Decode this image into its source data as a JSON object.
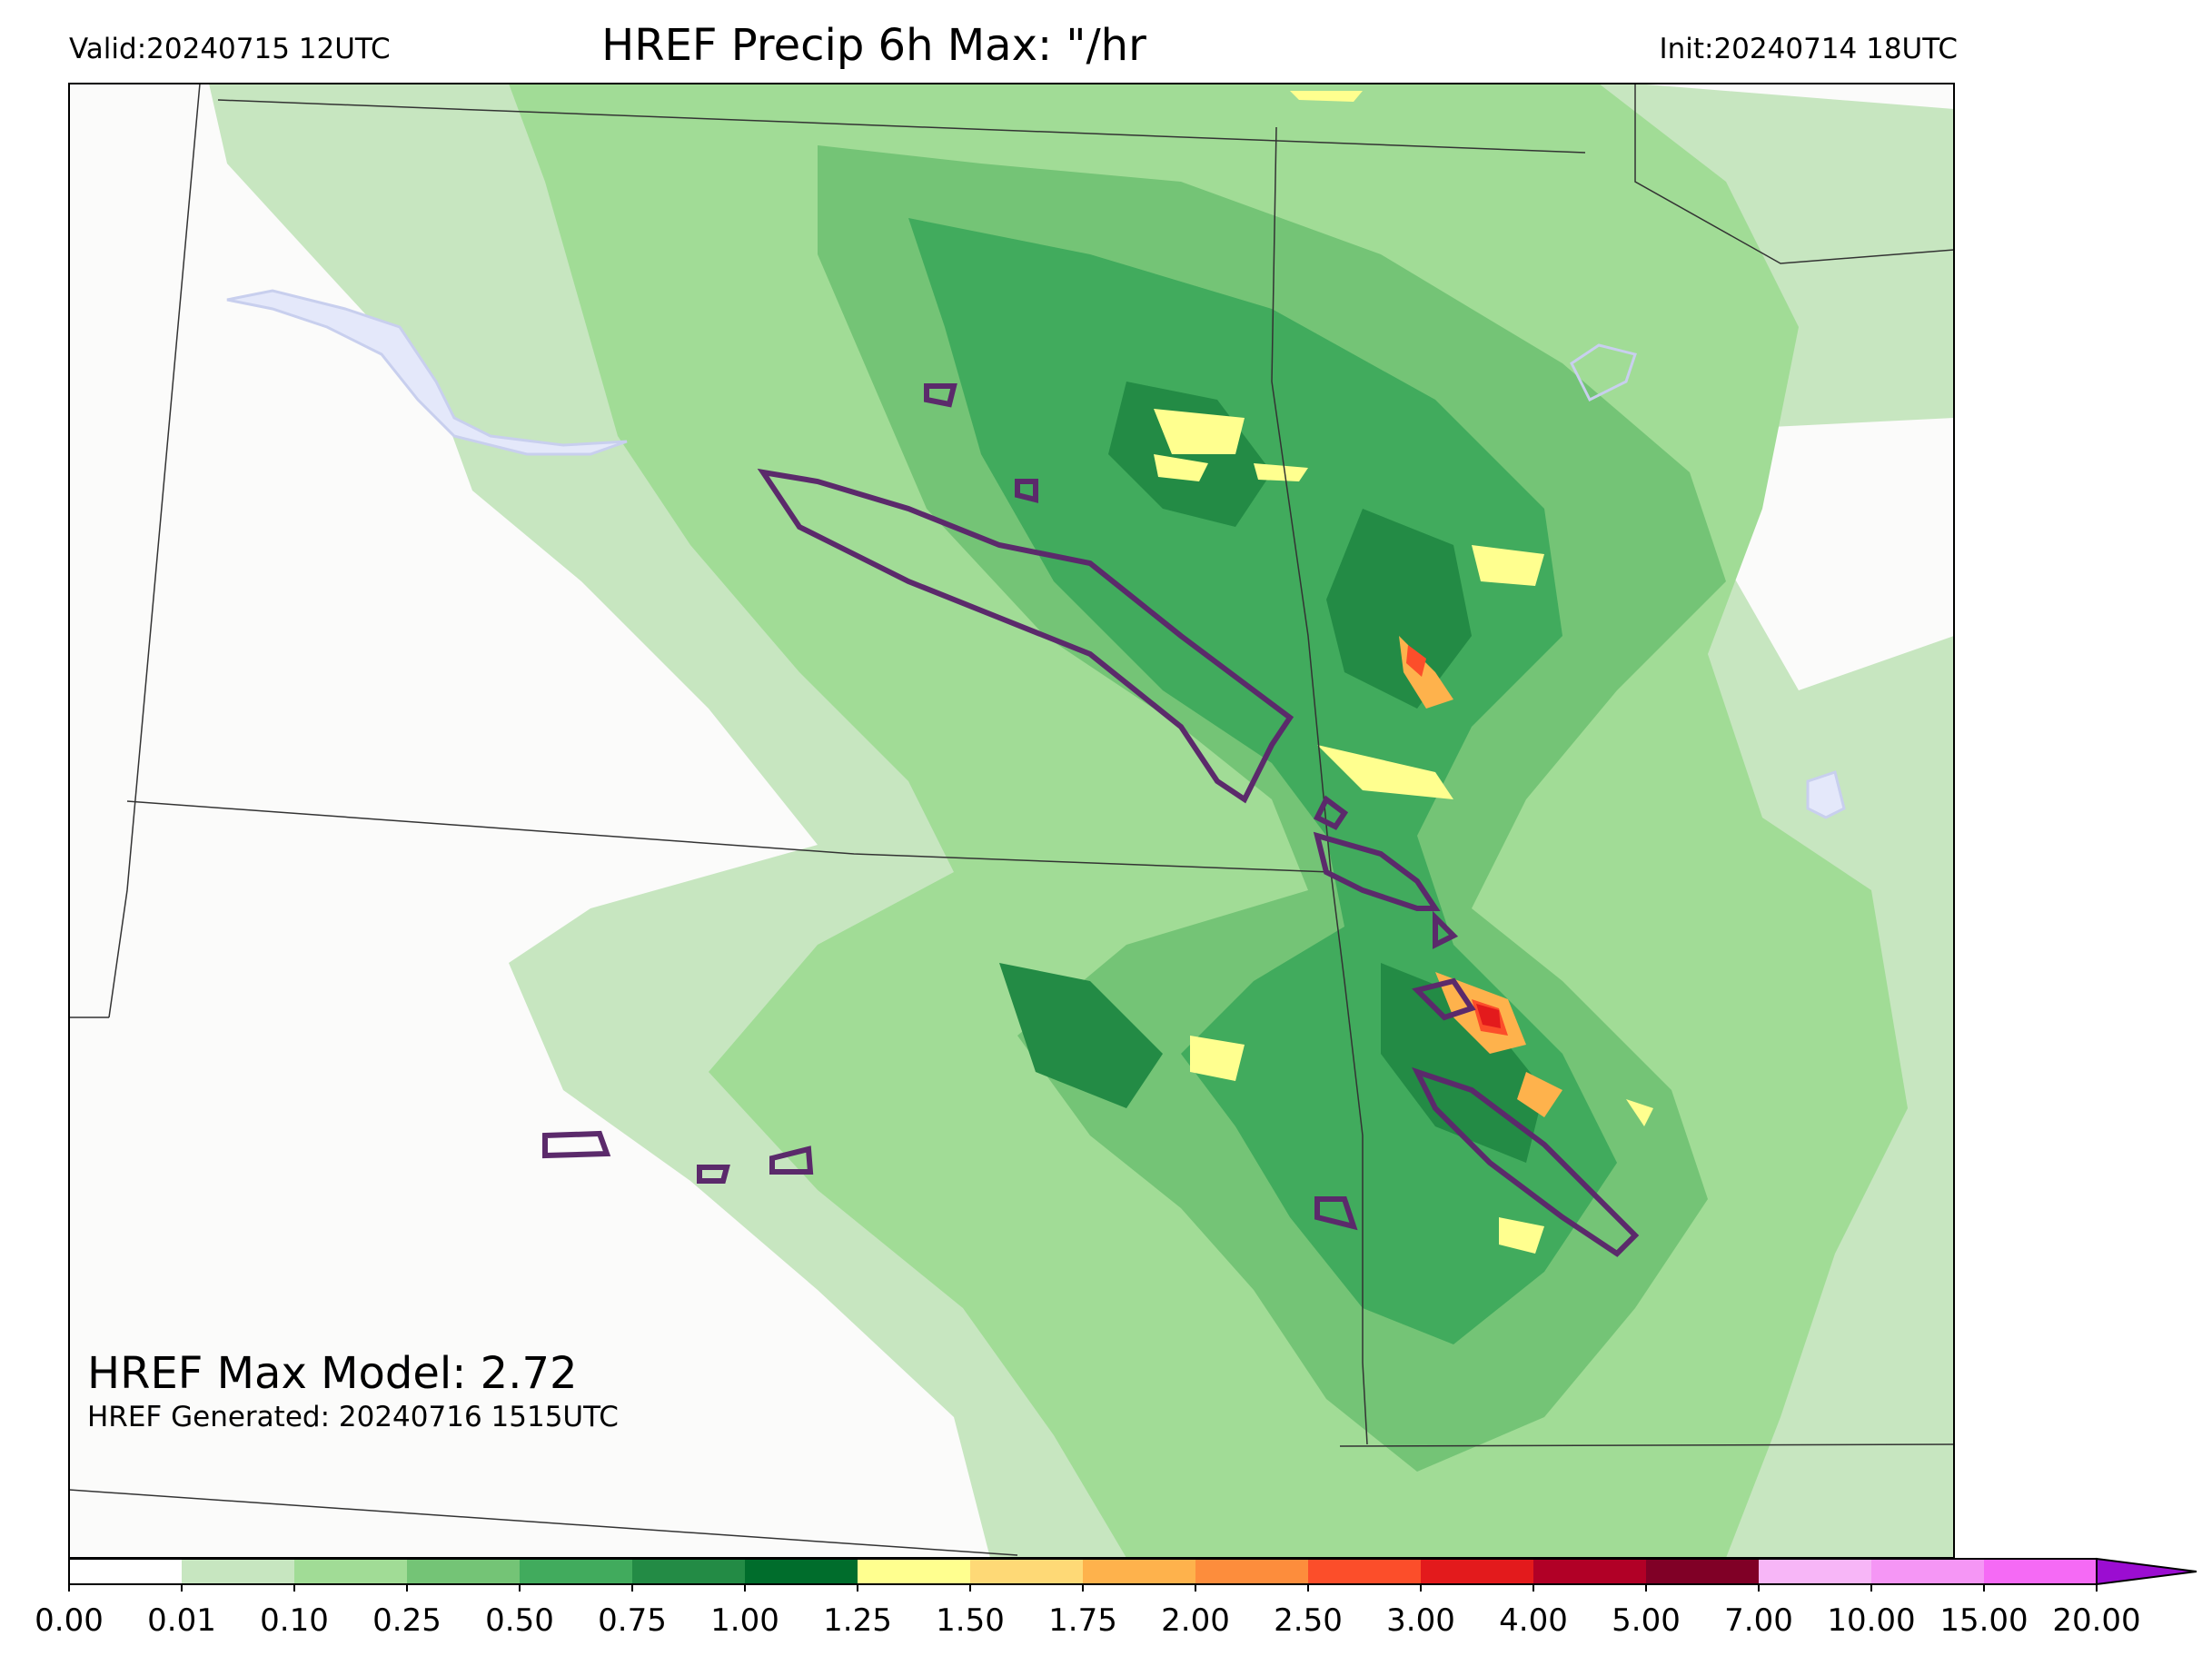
{
  "header": {
    "valid": "Valid:20240715 12UTC",
    "title": "HREF Precip 6h Max: \"/hr",
    "init": "Init:20240714 18UTC"
  },
  "annotations": {
    "max_model": "HREF Max Model: 2.72",
    "generated": "HREF Generated: 20240716 1515UTC"
  },
  "colorbar": {
    "levels": [
      "0.00",
      "0.01",
      "0.10",
      "0.25",
      "0.50",
      "0.75",
      "1.00",
      "1.25",
      "1.50",
      "1.75",
      "2.00",
      "2.50",
      "3.00",
      "4.00",
      "5.00",
      "7.00",
      "10.00",
      "15.00",
      "20.00"
    ],
    "colors": [
      "#ffffff",
      "#c7e6c0",
      "#a1dc96",
      "#74c476",
      "#41ab5d",
      "#238b45",
      "#006d2c",
      "#ffff8f",
      "#fed976",
      "#feb24c",
      "#fd8d3c",
      "#fc4e2a",
      "#e31a1c",
      "#b10026",
      "#800026",
      "#f7b6f7",
      "#f596f5",
      "#f56af5",
      "#ea2ef0",
      "#9b0dd1"
    ]
  },
  "legend_colors": {
    "contour_outline": "#5b2a6b",
    "water": "#c8cfee",
    "border": "#333333"
  }
}
